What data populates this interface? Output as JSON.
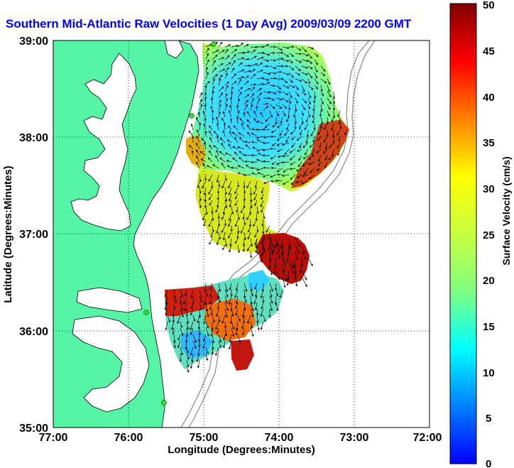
{
  "title": "Southern Mid-Atlantic Raw Velocities (1 Day Avg) 2009/03/09 2200 GMT",
  "map": {
    "x_label": "Longitude (Degrees:Minutes)",
    "y_label": "Latitude (Degrees:Minutes)",
    "x_ticks": [
      "77:00",
      "76:00",
      "75:00",
      "74:00",
      "73:00",
      "72:00"
    ],
    "y_ticks": [
      "39:00",
      "38:00",
      "37:00",
      "36:00",
      "35:00"
    ],
    "lon_range": [
      -77,
      -72
    ],
    "lat_range": [
      35,
      39
    ],
    "grid": "dotted",
    "land_color": "#55f5a5",
    "water_color": "#ffffff"
  },
  "colorbar": {
    "label": "Surface Velocity (cm/s)",
    "ticks": [
      "50",
      "45",
      "40",
      "35",
      "30",
      "25",
      "20",
      "15",
      "10",
      "5",
      "0"
    ],
    "range": [
      0,
      50
    ],
    "colormap": "jet"
  },
  "chart_data": {
    "type": "heatmap",
    "title": "Southern Mid-Atlantic Raw Velocities (1 Day Avg) 2009/03/09 2200 GMT",
    "xlabel": "Longitude (Degrees:Minutes)",
    "ylabel": "Latitude (Degrees:Minutes)",
    "xlim": [
      -77,
      -72
    ],
    "ylim": [
      35,
      39
    ],
    "colorbar_label": "Surface Velocity (cm/s)",
    "colorbar_range": [
      0,
      50
    ],
    "regions": [
      {
        "lon": [
          -74.6,
          -73.5
        ],
        "lat": [
          38.2,
          38.9
        ],
        "speed": 10
      },
      {
        "lon": [
          -73.6,
          -73.1
        ],
        "lat": [
          37.6,
          38.2
        ],
        "speed": 42
      },
      {
        "lon": [
          -74.9,
          -74.3
        ],
        "lat": [
          37.0,
          37.7
        ],
        "speed": 22
      },
      {
        "lon": [
          -74.2,
          -73.6
        ],
        "lat": [
          36.5,
          37.0
        ],
        "speed": 48
      },
      {
        "lon": [
          -75.5,
          -74.9
        ],
        "lat": [
          35.9,
          36.4
        ],
        "speed": 45
      },
      {
        "lon": [
          -74.9,
          -74.4
        ],
        "lat": [
          35.8,
          36.4
        ],
        "speed": 15
      }
    ],
    "stations": [
      {
        "lon": -74.85,
        "lat": 38.95
      },
      {
        "lon": -75.15,
        "lat": 38.22
      },
      {
        "lon": -75.75,
        "lat": 36.18
      },
      {
        "lon": -75.5,
        "lat": 35.27
      }
    ]
  }
}
